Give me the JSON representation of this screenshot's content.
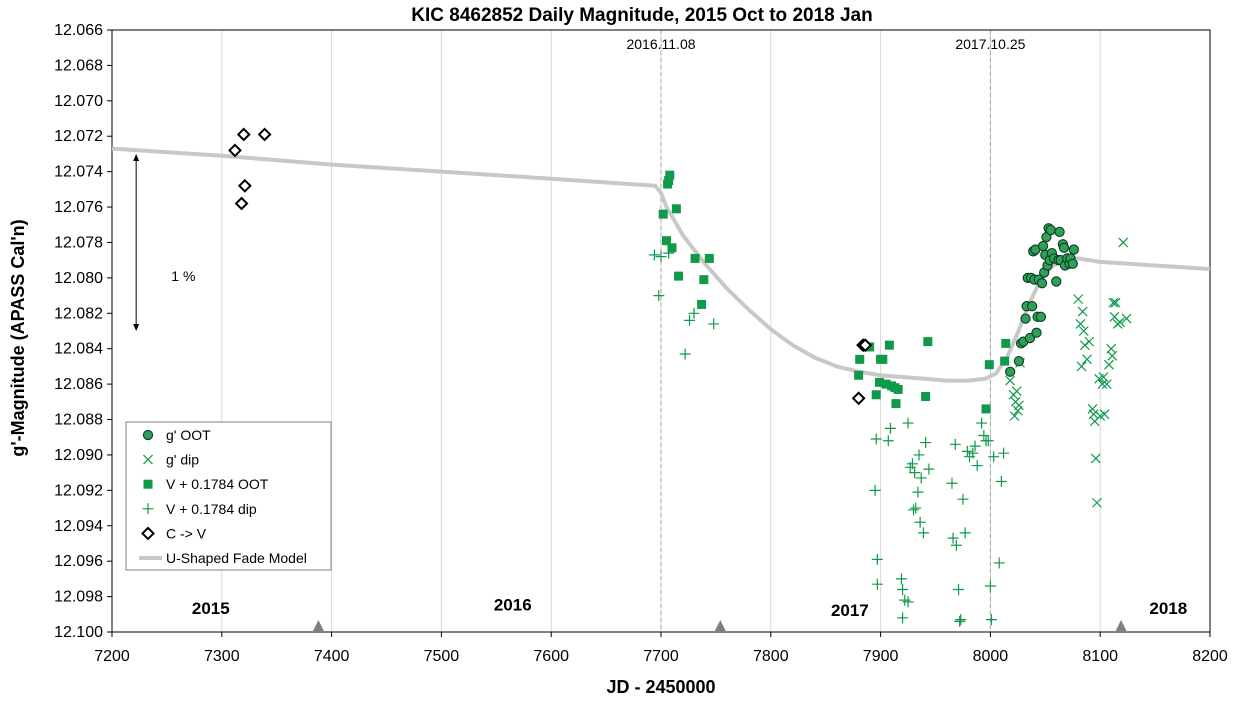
{
  "chart_data": {
    "type": "scatter",
    "title": "KIC 8462852 Daily Magnitude, 2015 Oct to 2018 Jan",
    "xlabel": "JD - 2450000",
    "ylabel": "g'-Magnitude (APASS Cal'n)",
    "xlim": [
      7200,
      8200
    ],
    "ylim": [
      12.066,
      12.1
    ],
    "y_inverted": true,
    "xticks": [
      7200,
      7300,
      7400,
      7500,
      7600,
      7700,
      7800,
      7900,
      8000,
      8100,
      8200
    ],
    "yticks": [
      12.066,
      12.068,
      12.07,
      12.072,
      12.074,
      12.076,
      12.078,
      12.08,
      12.082,
      12.084,
      12.086,
      12.088,
      12.09,
      12.092,
      12.094,
      12.096,
      12.098,
      12.1
    ],
    "xtick_labels": [
      "7200",
      "7300",
      "7400",
      "7500",
      "7600",
      "7700",
      "7800",
      "7900",
      "8000",
      "8100",
      "8200"
    ],
    "ytick_labels": [
      "12.066",
      "12.068",
      "12.070",
      "12.072",
      "12.074",
      "12.076",
      "12.078",
      "12.080",
      "12.082",
      "12.084",
      "12.086",
      "12.088",
      "12.090",
      "12.092",
      "12.094",
      "12.096",
      "12.098",
      "12.100"
    ],
    "grid": {
      "vertical": true,
      "horizontal": false
    },
    "vlines": [
      7700,
      8000
    ],
    "legend_placement": "bottom-left",
    "colors": {
      "green": "#0f9a4a",
      "gray": "#c8c8c8",
      "black": "#000000"
    },
    "series": [
      {
        "name": "g' OOT",
        "marker": "circle",
        "points": [
          [
            8018,
            12.0853
          ],
          [
            8026,
            12.0847
          ],
          [
            8028,
            12.0837
          ],
          [
            8030,
            12.0836
          ],
          [
            8032,
            12.0823
          ],
          [
            8033,
            12.0816
          ],
          [
            8034,
            12.08
          ],
          [
            8036,
            12.0834
          ],
          [
            8037,
            12.08
          ],
          [
            8038,
            12.0816
          ],
          [
            8039,
            12.0785
          ],
          [
            8040,
            12.0801
          ],
          [
            8041,
            12.0784
          ],
          [
            8042,
            12.0831
          ],
          [
            8043,
            12.0822
          ],
          [
            8044,
            12.0801
          ],
          [
            8046,
            12.0822
          ],
          [
            8047,
            12.0803
          ],
          [
            8048,
            12.0782
          ],
          [
            8049,
            12.0797
          ],
          [
            8050,
            12.0787
          ],
          [
            8051,
            12.0777
          ],
          [
            8052,
            12.0793
          ],
          [
            8053,
            12.0772
          ],
          [
            8054,
            12.079
          ],
          [
            8055,
            12.0773
          ],
          [
            8056,
            12.0786
          ],
          [
            8058,
            12.0789
          ],
          [
            8060,
            12.0802
          ],
          [
            8062,
            12.079
          ],
          [
            8063,
            12.0774
          ],
          [
            8064,
            12.079
          ],
          [
            8066,
            12.0781
          ],
          [
            8067,
            12.0783
          ],
          [
            8068,
            12.0793
          ],
          [
            8070,
            12.0789
          ],
          [
            8072,
            12.0792
          ],
          [
            8073,
            12.0789
          ],
          [
            8075,
            12.0792
          ],
          [
            8076,
            12.0784
          ]
        ]
      },
      {
        "name": "g' dip",
        "marker": "x",
        "points": [
          [
            8018,
            12.0858
          ],
          [
            8021,
            12.0866
          ],
          [
            8022,
            12.0878
          ],
          [
            8023,
            12.087
          ],
          [
            8024,
            12.0864
          ],
          [
            8025,
            12.0875
          ],
          [
            8026,
            12.0872
          ],
          [
            8027,
            12.0848
          ],
          [
            8080,
            12.0812
          ],
          [
            8082,
            12.0826
          ],
          [
            8083,
            12.085
          ],
          [
            8084,
            12.0819
          ],
          [
            8085,
            12.083
          ],
          [
            8086,
            12.0838
          ],
          [
            8088,
            12.0846
          ],
          [
            8090,
            12.0836
          ],
          [
            8093,
            12.0874
          ],
          [
            8094,
            12.0877
          ],
          [
            8095,
            12.0881
          ],
          [
            8096,
            12.0902
          ],
          [
            8097,
            12.0927
          ],
          [
            8099,
            12.0857
          ],
          [
            8100,
            12.0878
          ],
          [
            8102,
            12.086
          ],
          [
            8103,
            12.0856
          ],
          [
            8104,
            12.0877
          ],
          [
            8106,
            12.086
          ],
          [
            8108,
            12.0849
          ],
          [
            8110,
            12.084
          ],
          [
            8111,
            12.0844
          ],
          [
            8112,
            12.0814
          ],
          [
            8113,
            12.0822
          ],
          [
            8114,
            12.0814
          ],
          [
            8116,
            12.0826
          ],
          [
            8118,
            12.0825
          ],
          [
            8121,
            12.078
          ],
          [
            8124,
            12.0823
          ]
        ]
      },
      {
        "name": "V + 0.1784 OOT",
        "marker": "square",
        "points": [
          [
            7702,
            12.0764
          ],
          [
            7705,
            12.0779
          ],
          [
            7706,
            12.0747
          ],
          [
            7707,
            12.0745
          ],
          [
            7708,
            12.0742
          ],
          [
            7710,
            12.0783
          ],
          [
            7714,
            12.0761
          ],
          [
            7716,
            12.0799
          ],
          [
            7731,
            12.0789
          ],
          [
            7737,
            12.0815
          ],
          [
            7739,
            12.0801
          ],
          [
            7744,
            12.0789
          ],
          [
            7880,
            12.0855
          ],
          [
            7881,
            12.0846
          ],
          [
            7890,
            12.0839
          ],
          [
            7896,
            12.0866
          ],
          [
            7899,
            12.0859
          ],
          [
            7900,
            12.0846
          ],
          [
            7902,
            12.0846
          ],
          [
            7905,
            12.086
          ],
          [
            7908,
            12.0838
          ],
          [
            7910,
            12.0861
          ],
          [
            7913,
            12.0862
          ],
          [
            7914,
            12.0871
          ],
          [
            7916,
            12.0863
          ],
          [
            7941,
            12.0867
          ],
          [
            7943,
            12.0836
          ],
          [
            7996,
            12.0874
          ],
          [
            7999,
            12.0849
          ],
          [
            8013,
            12.0847
          ],
          [
            8014,
            12.0837
          ]
        ]
      },
      {
        "name": "V + 0.1784 dip",
        "marker": "plus",
        "points": [
          [
            7694,
            12.0787
          ],
          [
            7700,
            12.0788
          ],
          [
            7698,
            12.081
          ],
          [
            7707,
            12.0786
          ],
          [
            7722,
            12.0843
          ],
          [
            7726,
            12.0824
          ],
          [
            7730,
            12.082
          ],
          [
            7748,
            12.0826
          ],
          [
            7895,
            12.092
          ],
          [
            7896,
            12.0891
          ],
          [
            7897,
            12.0973
          ],
          [
            7897,
            12.0959
          ],
          [
            7907,
            12.0892
          ],
          [
            7909,
            12.0885
          ],
          [
            7919,
            12.097
          ],
          [
            7920,
            12.0992
          ],
          [
            7920,
            12.0976
          ],
          [
            7922,
            12.0982
          ],
          [
            7925,
            12.0983
          ],
          [
            7925,
            12.0882
          ],
          [
            7927,
            12.0907
          ],
          [
            7929,
            12.0905
          ],
          [
            7930,
            12.0931
          ],
          [
            7931,
            12.091
          ],
          [
            7932,
            12.093
          ],
          [
            7934,
            12.0921
          ],
          [
            7935,
            12.09
          ],
          [
            7936,
            12.0938
          ],
          [
            7937,
            12.0913
          ],
          [
            7939,
            12.0944
          ],
          [
            7941,
            12.0893
          ],
          [
            7944,
            12.0908
          ],
          [
            7965,
            12.0916
          ],
          [
            7966,
            12.0947
          ],
          [
            7968,
            12.0894
          ],
          [
            7969,
            12.0951
          ],
          [
            7971,
            12.0976
          ],
          [
            7972,
            12.0994
          ],
          [
            7973,
            12.0993
          ],
          [
            7975,
            12.0925
          ],
          [
            7977,
            12.0944
          ],
          [
            7979,
            12.0898
          ],
          [
            7981,
            12.0901
          ],
          [
            7984,
            12.0899
          ],
          [
            7986,
            12.0895
          ],
          [
            7988,
            12.0906
          ],
          [
            7992,
            12.0882
          ],
          [
            7994,
            12.0889
          ],
          [
            7996,
            12.0892
          ],
          [
            7998,
            12.0892
          ],
          [
            8000,
            12.0974
          ],
          [
            8001,
            12.0993
          ],
          [
            8003,
            12.0901
          ],
          [
            8008,
            12.0961
          ],
          [
            8010,
            12.0915
          ],
          [
            8012,
            12.0899
          ]
        ]
      },
      {
        "name": "C -> V",
        "marker": "diamond",
        "points": [
          [
            7312,
            12.0728
          ],
          [
            7318,
            12.0758
          ],
          [
            7320,
            12.0719
          ],
          [
            7321,
            12.0748
          ],
          [
            7339,
            12.0719
          ],
          [
            7880,
            12.0868
          ],
          [
            7884,
            12.0838
          ],
          [
            7886,
            12.0838
          ]
        ]
      },
      {
        "name": "U-Shaped Fade Model",
        "marker": "line",
        "points": [
          [
            7200,
            12.0727
          ],
          [
            7300,
            12.0731
          ],
          [
            7400,
            12.0736
          ],
          [
            7500,
            12.074
          ],
          [
            7600,
            12.0744
          ],
          [
            7695,
            12.0748
          ],
          [
            7700,
            12.0752
          ],
          [
            7705,
            12.076
          ],
          [
            7720,
            12.0776
          ],
          [
            7740,
            12.0792
          ],
          [
            7760,
            12.0806
          ],
          [
            7780,
            12.0818
          ],
          [
            7800,
            12.0829
          ],
          [
            7820,
            12.0838
          ],
          [
            7840,
            12.0845
          ],
          [
            7860,
            12.085
          ],
          [
            7880,
            12.0853
          ],
          [
            7900,
            12.0855
          ],
          [
            7920,
            12.0856
          ],
          [
            7940,
            12.0857
          ],
          [
            7960,
            12.0858
          ],
          [
            7980,
            12.0858
          ],
          [
            7995,
            12.0857
          ],
          [
            8005,
            12.0854
          ],
          [
            8015,
            12.0845
          ],
          [
            8025,
            12.0831
          ],
          [
            8035,
            12.0815
          ],
          [
            8045,
            12.0802
          ],
          [
            8055,
            12.0794
          ],
          [
            8065,
            12.079
          ],
          [
            8080,
            12.0789
          ],
          [
            8100,
            12.0791
          ],
          [
            8150,
            12.0793
          ],
          [
            8200,
            12.0795
          ]
        ]
      }
    ],
    "annotations": [
      {
        "text": "2016.11.08",
        "x": 7700,
        "y": 12.0668
      },
      {
        "text": "2017.10.25",
        "x": 8000,
        "y": 12.0668
      },
      {
        "text": "1 %",
        "x": 7265,
        "y": 12.0799
      },
      {
        "text": "2015",
        "x": 7290,
        "y": 12.0987
      },
      {
        "text": "2016",
        "x": 7565,
        "y": 12.0985
      },
      {
        "text": "2017",
        "x": 7872,
        "y": 12.0988
      },
      {
        "text": "2018",
        "x": 8162,
        "y": 12.0987
      }
    ],
    "range_arrow": {
      "x": 7222,
      "y_from": 12.073,
      "y_to": 12.083
    },
    "year_markers_x": [
      7388,
      7754,
      8119
    ]
  }
}
